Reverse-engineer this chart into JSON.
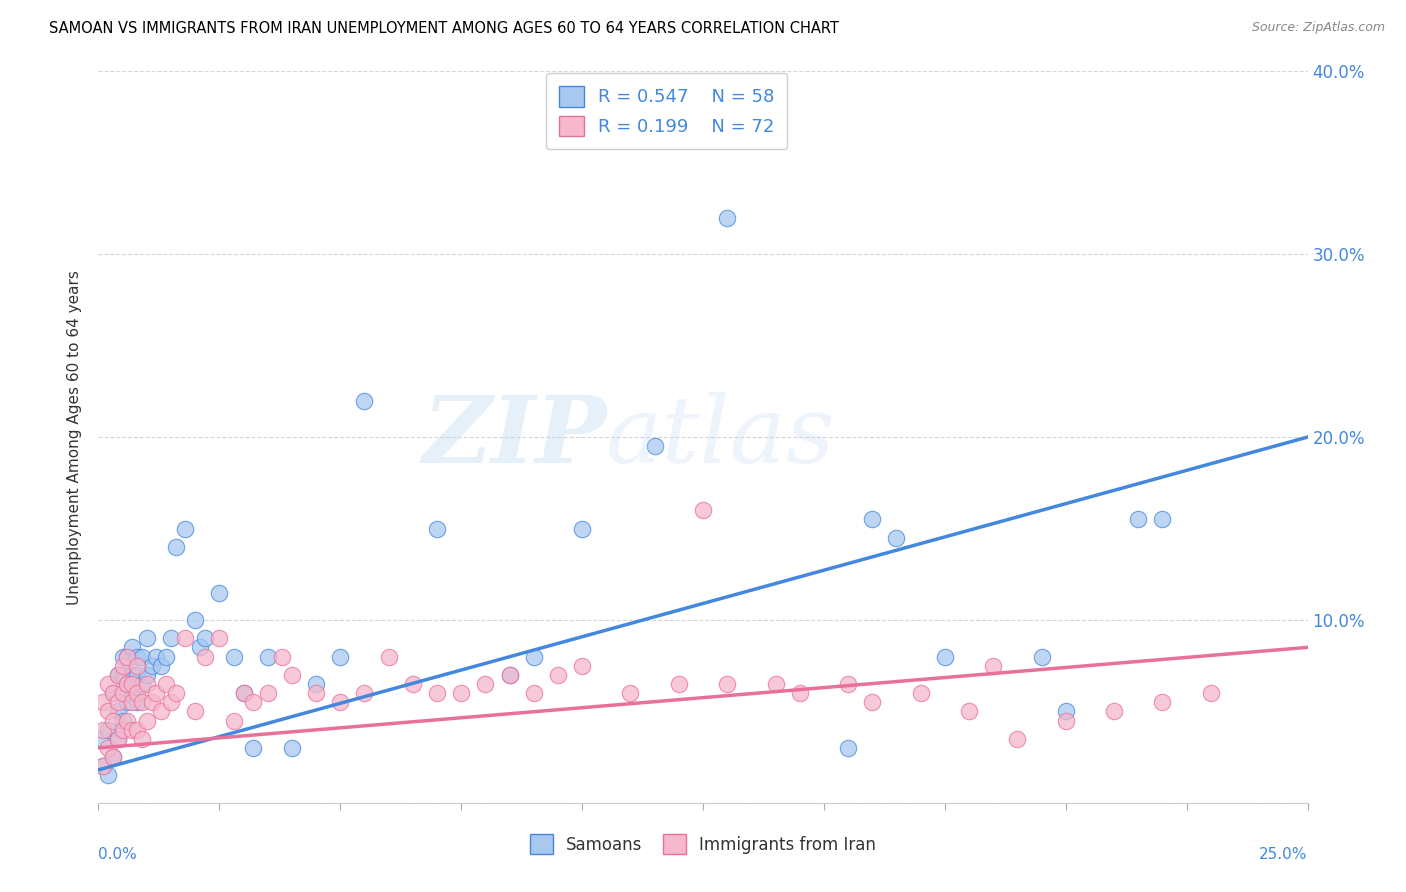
{
  "title": "SAMOAN VS IMMIGRANTS FROM IRAN UNEMPLOYMENT AMONG AGES 60 TO 64 YEARS CORRELATION CHART",
  "source": "Source: ZipAtlas.com",
  "ylabel": "Unemployment Among Ages 60 to 64 years",
  "xlim": [
    0.0,
    0.25
  ],
  "ylim": [
    0.0,
    0.4
  ],
  "blue_color": "#a8c8f0",
  "pink_color": "#f5b8cc",
  "line_blue": "#4488dd",
  "line_pink": "#e8709a",
  "R_blue": 0.547,
  "N_blue": 58,
  "R_pink": 0.199,
  "N_pink": 72,
  "legend_blue": "Samoans",
  "legend_pink": "Immigrants from Iran",
  "label_color": "#4488dd",
  "trend_blue_start_y": 0.018,
  "trend_blue_end_y": 0.2,
  "trend_pink_start_y": 0.03,
  "trend_pink_end_y": 0.085,
  "samoans_x": [
    0.001,
    0.001,
    0.002,
    0.002,
    0.003,
    0.003,
    0.004,
    0.004,
    0.004,
    0.005,
    0.005,
    0.005,
    0.006,
    0.006,
    0.006,
    0.007,
    0.007,
    0.007,
    0.008,
    0.008,
    0.008,
    0.009,
    0.009,
    0.01,
    0.01,
    0.011,
    0.012,
    0.013,
    0.014,
    0.015,
    0.016,
    0.018,
    0.02,
    0.021,
    0.022,
    0.025,
    0.028,
    0.03,
    0.032,
    0.035,
    0.04,
    0.045,
    0.05,
    0.055,
    0.07,
    0.085,
    0.09,
    0.1,
    0.115,
    0.13,
    0.155,
    0.16,
    0.165,
    0.175,
    0.195,
    0.2,
    0.215,
    0.22
  ],
  "samoans_y": [
    0.02,
    0.035,
    0.015,
    0.04,
    0.025,
    0.06,
    0.035,
    0.05,
    0.07,
    0.045,
    0.07,
    0.08,
    0.055,
    0.065,
    0.08,
    0.06,
    0.07,
    0.085,
    0.055,
    0.07,
    0.08,
    0.065,
    0.08,
    0.07,
    0.09,
    0.075,
    0.08,
    0.075,
    0.08,
    0.09,
    0.14,
    0.15,
    0.1,
    0.085,
    0.09,
    0.115,
    0.08,
    0.06,
    0.03,
    0.08,
    0.03,
    0.065,
    0.08,
    0.22,
    0.15,
    0.07,
    0.08,
    0.15,
    0.195,
    0.32,
    0.03,
    0.155,
    0.145,
    0.08,
    0.08,
    0.05,
    0.155,
    0.155
  ],
  "iran_x": [
    0.001,
    0.001,
    0.001,
    0.002,
    0.002,
    0.002,
    0.003,
    0.003,
    0.003,
    0.004,
    0.004,
    0.004,
    0.005,
    0.005,
    0.005,
    0.006,
    0.006,
    0.006,
    0.007,
    0.007,
    0.007,
    0.008,
    0.008,
    0.008,
    0.009,
    0.009,
    0.01,
    0.01,
    0.011,
    0.012,
    0.013,
    0.014,
    0.015,
    0.016,
    0.018,
    0.02,
    0.022,
    0.025,
    0.028,
    0.03,
    0.032,
    0.035,
    0.038,
    0.04,
    0.045,
    0.05,
    0.055,
    0.06,
    0.065,
    0.07,
    0.075,
    0.08,
    0.085,
    0.09,
    0.095,
    0.1,
    0.11,
    0.12,
    0.125,
    0.13,
    0.14,
    0.145,
    0.155,
    0.16,
    0.17,
    0.18,
    0.19,
    0.2,
    0.21,
    0.22,
    0.185,
    0.23
  ],
  "iran_y": [
    0.02,
    0.04,
    0.055,
    0.03,
    0.05,
    0.065,
    0.025,
    0.045,
    0.06,
    0.035,
    0.055,
    0.07,
    0.04,
    0.06,
    0.075,
    0.045,
    0.065,
    0.08,
    0.04,
    0.055,
    0.065,
    0.04,
    0.06,
    0.075,
    0.035,
    0.055,
    0.045,
    0.065,
    0.055,
    0.06,
    0.05,
    0.065,
    0.055,
    0.06,
    0.09,
    0.05,
    0.08,
    0.09,
    0.045,
    0.06,
    0.055,
    0.06,
    0.08,
    0.07,
    0.06,
    0.055,
    0.06,
    0.08,
    0.065,
    0.06,
    0.06,
    0.065,
    0.07,
    0.06,
    0.07,
    0.075,
    0.06,
    0.065,
    0.16,
    0.065,
    0.065,
    0.06,
    0.065,
    0.055,
    0.06,
    0.05,
    0.035,
    0.045,
    0.05,
    0.055,
    0.075,
    0.06
  ]
}
